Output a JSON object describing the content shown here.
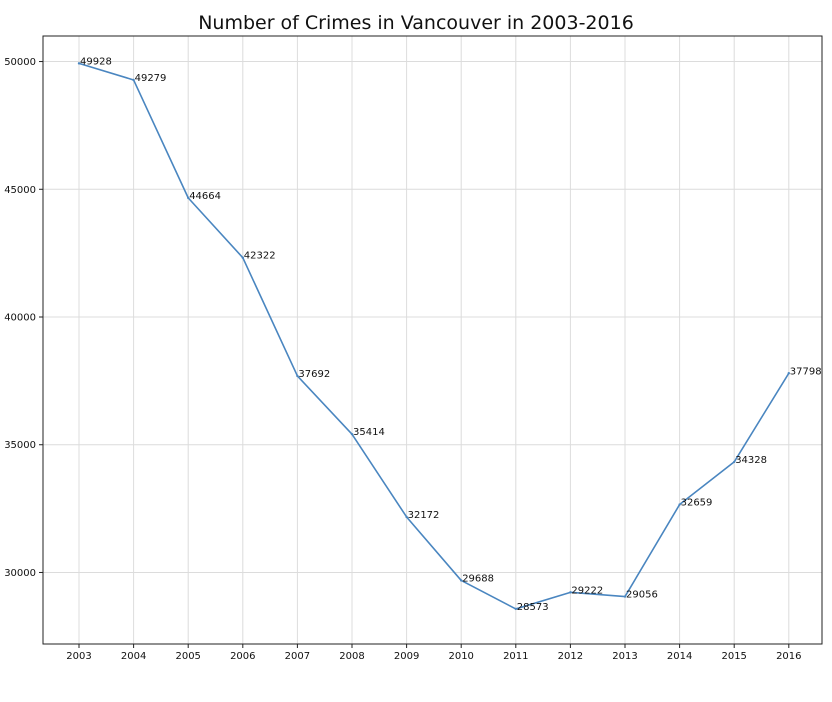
{
  "chart_data": {
    "type": "line",
    "title": "Number of Crimes in Vancouver in 2003-2016",
    "xlabel": "",
    "ylabel": "",
    "categories": [
      "2003",
      "2004",
      "2005",
      "2006",
      "2007",
      "2008",
      "2009",
      "2010",
      "2011",
      "2012",
      "2013",
      "2014",
      "2015",
      "2016"
    ],
    "series": [
      {
        "values": [
          49928,
          49279,
          44664,
          42322,
          37692,
          35414,
          32172,
          29688,
          28573,
          29222,
          29056,
          32659,
          34328,
          37798
        ],
        "color": "#4a86c0"
      }
    ],
    "yticks": [
      30000,
      35000,
      40000,
      45000,
      50000
    ],
    "ylim": [
      27200,
      51000
    ],
    "grid": true,
    "legend": "none"
  }
}
